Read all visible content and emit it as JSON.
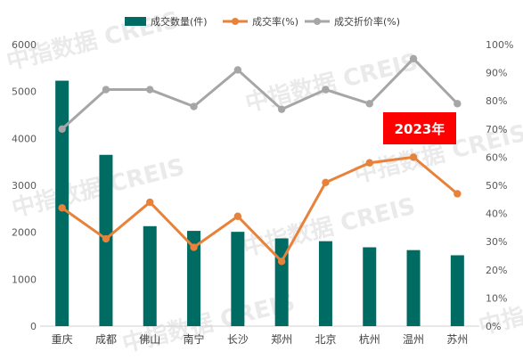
{
  "watermark": "中指数据 CREIS",
  "badge": {
    "text": "2023年",
    "color": "#ff0000"
  },
  "colors": {
    "bar": "#006b63",
    "rate": "#e8823a",
    "discount": "#a6a6a6"
  },
  "chart_data": {
    "type": "bar",
    "categories": [
      "重庆",
      "成都",
      "佛山",
      "南宁",
      "长沙",
      "郑州",
      "北京",
      "杭州",
      "温州",
      "苏州"
    ],
    "series": [
      {
        "name": "成交数量(件)",
        "type": "bar",
        "axis": "left",
        "values": [
          5230,
          3650,
          2130,
          2030,
          2010,
          1870,
          1810,
          1680,
          1620,
          1510
        ]
      },
      {
        "name": "成交率(%)",
        "type": "line",
        "axis": "right",
        "values": [
          42,
          31,
          44,
          28,
          39,
          23,
          51,
          58,
          60,
          47
        ]
      },
      {
        "name": "成交折价率(%)",
        "type": "line",
        "axis": "right",
        "values": [
          70,
          84,
          84,
          78,
          91,
          77,
          84,
          79,
          95,
          79
        ]
      }
    ],
    "y_left": {
      "min": 0,
      "max": 6000,
      "step": 1000
    },
    "y_right": {
      "min": 0,
      "max": 100,
      "step": 10,
      "suffix": "%"
    },
    "legend_position": "top",
    "grid": false
  }
}
